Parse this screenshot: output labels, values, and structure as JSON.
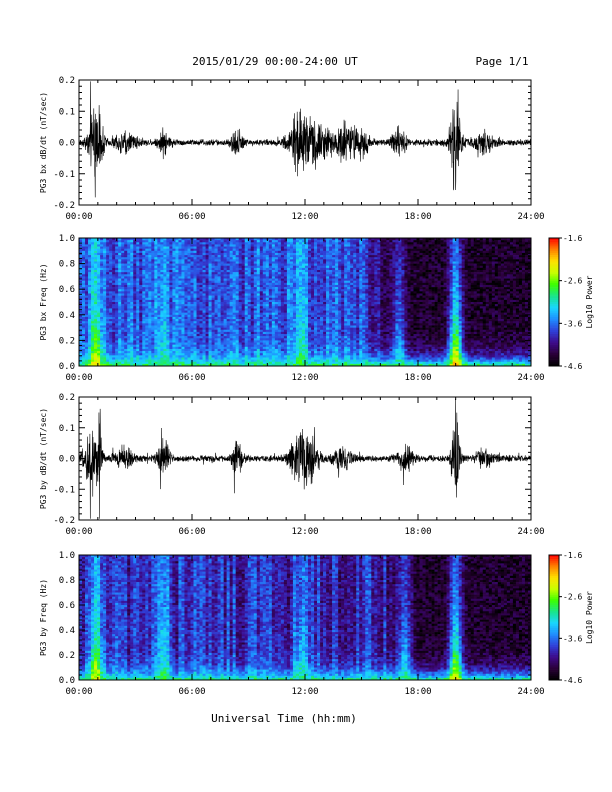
{
  "header": {
    "title": "2015/01/29  00:00-24:00 UT",
    "page": "Page 1/1"
  },
  "footer": {
    "xlabel": "Universal Time (hh:mm)"
  },
  "colors": {
    "trace": "#000000",
    "colormap": [
      "#000000",
      "#2a0038",
      "#3d0a8a",
      "#2f3fd8",
      "#1f8cff",
      "#19d6ff",
      "#19e68a",
      "#3cff00",
      "#c8ff00",
      "#ffe000",
      "#ff8000",
      "#ff0000"
    ]
  },
  "chart_data": [
    {
      "type": "line",
      "ylabel": "PG3 bx dB/dt (nT/sec)",
      "x_ticks": [
        "00:00",
        "06:00",
        "12:00",
        "18:00",
        "24:00"
      ],
      "x_unit": "hours UT",
      "xlim": [
        0,
        24
      ],
      "ylim": [
        -0.2,
        0.2
      ],
      "y_ticks": [
        "0.2",
        "0.1",
        "0.0",
        "-0.1",
        "-0.2"
      ],
      "baseline_amplitude": 0.012,
      "activity": [
        {
          "t": 0.9,
          "amp": 0.16,
          "w": 0.35
        },
        {
          "t": 2.5,
          "amp": 0.035,
          "w": 0.6
        },
        {
          "t": 4.5,
          "amp": 0.045,
          "w": 0.3
        },
        {
          "t": 8.4,
          "amp": 0.05,
          "w": 0.3
        },
        {
          "t": 11.8,
          "amp": 0.12,
          "w": 0.6
        },
        {
          "t": 12.8,
          "amp": 0.06,
          "w": 0.5
        },
        {
          "t": 14.0,
          "amp": 0.07,
          "w": 0.6
        },
        {
          "t": 15.0,
          "amp": 0.06,
          "w": 0.4
        },
        {
          "t": 17.0,
          "amp": 0.045,
          "w": 0.4
        },
        {
          "t": 20.0,
          "amp": 0.17,
          "w": 0.3
        },
        {
          "t": 21.5,
          "amp": 0.04,
          "w": 0.5
        }
      ]
    },
    {
      "type": "heatmap",
      "ylabel": "PG3 bx Freq (Hz)",
      "colorbar_label": "Log10 Power",
      "x_ticks": [
        "00:00",
        "06:00",
        "12:00",
        "18:00",
        "24:00"
      ],
      "xlim": [
        0,
        24
      ],
      "ylim": [
        0,
        1.0
      ],
      "y_ticks": [
        "1.0",
        "0.8",
        "0.6",
        "0.4",
        "0.2",
        "0.0"
      ],
      "clim": [
        -4.6,
        -1.6
      ],
      "colorbar_ticks": [
        "-1.6",
        "-2.6",
        "-3.6",
        "-4.6"
      ],
      "background_level": -3.7,
      "quiet_after_hour": 14.8,
      "quiet_level": -4.4,
      "low_band_level": -2.8,
      "bursts": [
        {
          "t": 0.9,
          "level": -2.2
        },
        {
          "t": 4.5,
          "level": -3.0
        },
        {
          "t": 11.8,
          "level": -2.8
        },
        {
          "t": 17.0,
          "level": -3.0
        },
        {
          "t": 20.0,
          "level": -2.0
        }
      ]
    },
    {
      "type": "line",
      "ylabel": "PG3 by dB/dt (nT/sec)",
      "x_ticks": [
        "00:00",
        "06:00",
        "12:00",
        "18:00",
        "24:00"
      ],
      "xlim": [
        0,
        24
      ],
      "ylim": [
        -0.2,
        0.2
      ],
      "y_ticks": [
        "0.2",
        "0.1",
        "0.0",
        "-0.1",
        "-0.2"
      ],
      "baseline_amplitude": 0.012,
      "activity": [
        {
          "t": 0.7,
          "amp": 0.12,
          "w": 0.4
        },
        {
          "t": 1.1,
          "amp": 0.2,
          "w": 0.08
        },
        {
          "t": 2.4,
          "amp": 0.04,
          "w": 0.5
        },
        {
          "t": 4.5,
          "amp": 0.07,
          "w": 0.3
        },
        {
          "t": 8.4,
          "amp": 0.06,
          "w": 0.3
        },
        {
          "t": 11.8,
          "amp": 0.12,
          "w": 0.5
        },
        {
          "t": 12.4,
          "amp": 0.05,
          "w": 0.4
        },
        {
          "t": 14.0,
          "amp": 0.04,
          "w": 0.5
        },
        {
          "t": 17.3,
          "amp": 0.05,
          "w": 0.4
        },
        {
          "t": 20.0,
          "amp": 0.2,
          "w": 0.2
        },
        {
          "t": 21.5,
          "amp": 0.03,
          "w": 0.5
        }
      ]
    },
    {
      "type": "heatmap",
      "ylabel": "PG3 by Freq (Hz)",
      "colorbar_label": "Log10 Power",
      "x_ticks": [
        "00:00",
        "06:00",
        "12:00",
        "18:00",
        "24:00"
      ],
      "xlim": [
        0,
        24
      ],
      "ylim": [
        0,
        1.0
      ],
      "y_ticks": [
        "1.0",
        "0.8",
        "0.6",
        "0.4",
        "0.2",
        "0.0"
      ],
      "clim": [
        -4.6,
        -1.6
      ],
      "colorbar_ticks": [
        "-1.6",
        "-2.6",
        "-3.6",
        "-4.6"
      ],
      "background_level": -3.9,
      "quiet_after_hour": 16.0,
      "quiet_level": -4.4,
      "low_band_level": -2.9,
      "bursts": [
        {
          "t": 0.9,
          "level": -2.3
        },
        {
          "t": 4.5,
          "level": -2.9
        },
        {
          "t": 11.8,
          "level": -3.0
        },
        {
          "t": 17.3,
          "level": -3.0
        },
        {
          "t": 20.0,
          "level": -2.2
        }
      ]
    }
  ]
}
